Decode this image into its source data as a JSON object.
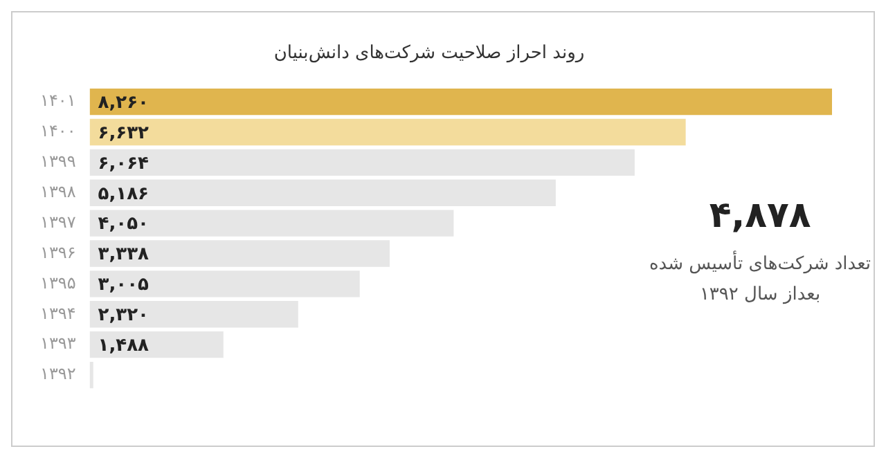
{
  "chart_data": {
    "type": "bar",
    "orientation": "horizontal",
    "title": "روند احراز صلاحیت شرکت‌های دانش‌بنیان",
    "categories": [
      "۱۴۰۱",
      "۱۴۰۰",
      "۱۳۹۹",
      "۱۳۹۸",
      "۱۳۹۷",
      "۱۳۹۶",
      "۱۳۹۵",
      "۱۳۹۴",
      "۱۳۹۳",
      "۱۳۹۲"
    ],
    "values": [
      8260,
      6632,
      6064,
      5186,
      4050,
      3338,
      3005,
      2320,
      1488,
      40
    ],
    "value_labels": [
      "۸,۲۶۰",
      "۶,۶۳۲",
      "۶,۰۶۴",
      "۵,۱۸۶",
      "۴,۰۵۰",
      "۳,۳۳۸",
      "۳,۰۰۵",
      "۲,۳۲۰",
      "۱,۴۸۸",
      null
    ],
    "colors": [
      "#e0b54e",
      "#f3dc9c",
      "#e6e6e6",
      "#e6e6e6",
      "#e6e6e6",
      "#e6e6e6",
      "#e6e6e6",
      "#e6e6e6",
      "#e6e6e6",
      "#e6e6e6"
    ],
    "xlim": [
      0,
      8260
    ],
    "annotations": [
      "۴,۸۷۸",
      "تعداد شرکت‌های تأسیس شده",
      "بعداز سال ۱۳۹۲"
    ],
    "grid": false,
    "legend": false
  }
}
